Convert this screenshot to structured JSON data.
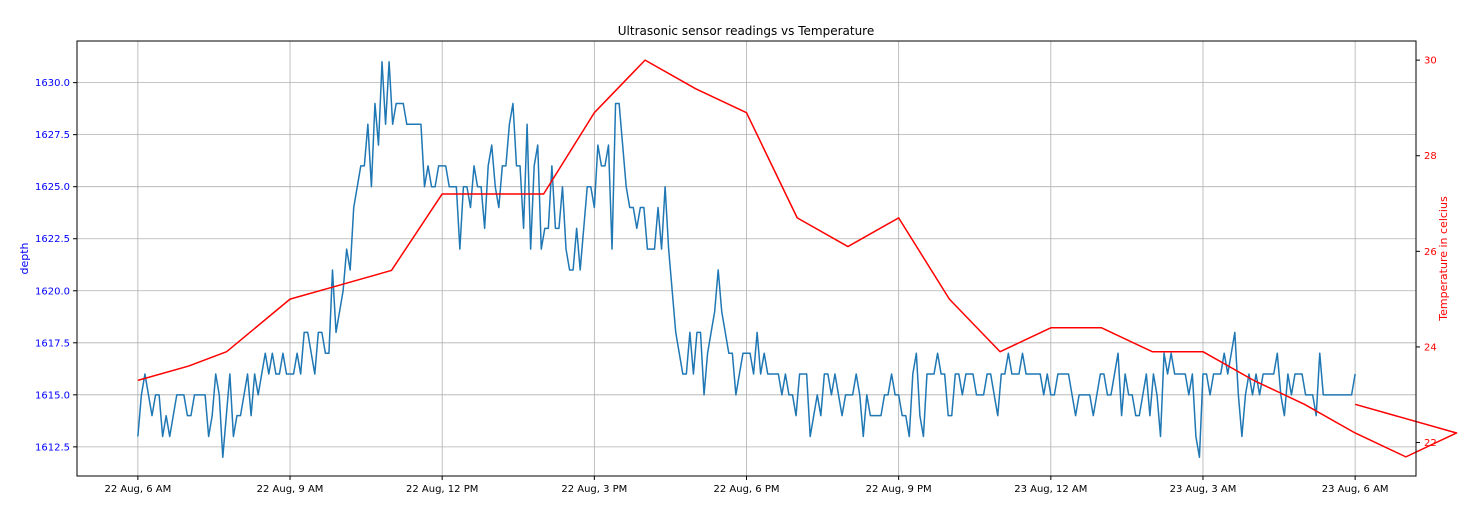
{
  "chart_data": {
    "type": "line",
    "title": "Ultrasonic sensor readings vs Temperature",
    "grid": true,
    "left_axis": {
      "label": "depth",
      "color": "#0000ff",
      "range": [
        1611.1,
        1632.0
      ],
      "ticks": [
        1612.5,
        1615.0,
        1617.5,
        1620.0,
        1622.5,
        1625.0,
        1627.5,
        1630.0
      ],
      "tick_labels": [
        "1612.5",
        "1615.0",
        "1617.5",
        "1620.0",
        "1622.5",
        "1625.0",
        "1627.5",
        "1630.0"
      ]
    },
    "right_axis": {
      "label": "Temperature in celcius",
      "color": "#ff0000",
      "range": [
        21.3,
        30.4
      ],
      "ticks": [
        22,
        24,
        26,
        28,
        30
      ],
      "tick_labels": [
        "22",
        "24",
        "26",
        "28",
        "30"
      ]
    },
    "x_axis": {
      "unit": "hours since first tick",
      "range": [
        -1.2,
        25.2
      ],
      "ticks": [
        0,
        3,
        6,
        9,
        12,
        15,
        18,
        21,
        24
      ],
      "tick_labels": [
        "22 Aug, 6 AM",
        "22 Aug, 9 AM",
        "22 Aug, 12 PM",
        "22 Aug, 3 PM",
        "22 Aug, 6 PM",
        "22 Aug, 9 PM",
        "23 Aug, 12 AM",
        "23 Aug, 3 AM",
        "23 Aug, 6 AM"
      ]
    },
    "series": [
      {
        "name": "depth",
        "axis": "left",
        "color": "#1f77b4",
        "x_start": 0.0,
        "x_end": 24.0,
        "values": [
          1613,
          1615,
          1616,
          1615,
          1614,
          1615,
          1615,
          1613,
          1614,
          1613,
          1614,
          1615,
          1615,
          1615,
          1614,
          1614,
          1615,
          1615,
          1615,
          1615,
          1613,
          1614,
          1616,
          1615,
          1612,
          1614,
          1616,
          1613,
          1614,
          1614,
          1615,
          1616,
          1614,
          1616,
          1615,
          1616,
          1617,
          1616,
          1617,
          1616,
          1616,
          1617,
          1616,
          1616,
          1616,
          1617,
          1616,
          1618,
          1618,
          1617,
          1616,
          1618,
          1618,
          1617,
          1617,
          1621,
          1618,
          1619,
          1620,
          1622,
          1621,
          1624,
          1625,
          1626,
          1626,
          1628,
          1625,
          1629,
          1627,
          1631,
          1628,
          1631,
          1628,
          1629,
          1629,
          1629,
          1628,
          1628,
          1628,
          1628,
          1628,
          1625,
          1626,
          1625,
          1625,
          1626,
          1626,
          1626,
          1625,
          1625,
          1625,
          1622,
          1625,
          1625,
          1624,
          1626,
          1625,
          1625,
          1623,
          1626,
          1627,
          1625,
          1624,
          1626,
          1626,
          1628,
          1629,
          1626,
          1626,
          1623,
          1628,
          1622,
          1626,
          1627,
          1622,
          1623,
          1623,
          1626,
          1623,
          1623,
          1625,
          1622,
          1621,
          1621,
          1623,
          1621,
          1623,
          1625,
          1625,
          1624,
          1627,
          1626,
          1626,
          1627,
          1622,
          1629,
          1629,
          1627,
          1625,
          1624,
          1624,
          1623,
          1624,
          1624,
          1622,
          1622,
          1622,
          1624,
          1622,
          1625,
          1622,
          1620,
          1618,
          1617,
          1616,
          1616,
          1618,
          1616,
          1618,
          1618,
          1615,
          1617,
          1618,
          1619,
          1621,
          1619,
          1618,
          1617,
          1617,
          1615,
          1616,
          1617,
          1617,
          1617,
          1616,
          1618,
          1616,
          1617,
          1616,
          1616,
          1616,
          1616,
          1615,
          1616,
          1615,
          1615,
          1614,
          1616,
          1616,
          1616,
          1613,
          1614,
          1615,
          1614,
          1616,
          1616,
          1615,
          1616,
          1615,
          1614,
          1615,
          1615,
          1615,
          1616,
          1615,
          1613,
          1615,
          1614,
          1614,
          1614,
          1614,
          1615,
          1615,
          1616,
          1615,
          1615,
          1614,
          1614,
          1613,
          1616,
          1617,
          1614,
          1613,
          1616,
          1616,
          1616,
          1617,
          1616,
          1616,
          1614,
          1614,
          1616,
          1616,
          1615,
          1616,
          1616,
          1616,
          1615,
          1615,
          1615,
          1616,
          1616,
          1615,
          1614,
          1616,
          1616,
          1617,
          1616,
          1616,
          1616,
          1617,
          1616,
          1616,
          1616,
          1616,
          1616,
          1615,
          1616,
          1615,
          1615,
          1616,
          1616,
          1616,
          1616,
          1615,
          1614,
          1615,
          1615,
          1615,
          1615,
          1614,
          1615,
          1616,
          1616,
          1615,
          1615,
          1616,
          1617,
          1614,
          1616,
          1615,
          1615,
          1614,
          1614,
          1615,
          1616,
          1614,
          1616,
          1615,
          1613,
          1617,
          1616,
          1617,
          1616,
          1616,
          1616,
          1616,
          1615,
          1616,
          1613,
          1612,
          1616,
          1616,
          1615,
          1616,
          1616,
          1616,
          1617,
          1616,
          1617,
          1618,
          1615,
          1613,
          1615,
          1616,
          1615,
          1616,
          1615,
          1616,
          1616,
          1616,
          1616,
          1617,
          1615,
          1614,
          1616,
          1615,
          1616,
          1616,
          1616,
          1615,
          1615,
          1615,
          1614,
          1617,
          1615,
          1615,
          1615,
          1615,
          1615,
          1615,
          1615,
          1615,
          1615,
          1616
        ]
      },
      {
        "name": "Temperature in celcius",
        "axis": "right",
        "color": "#ff0000",
        "points": [
          [
            0.0,
            23.3
          ],
          [
            1.0,
            23.6
          ],
          [
            1.75,
            23.9
          ],
          [
            3.0,
            25.0
          ],
          [
            4.0,
            25.3
          ],
          [
            5.0,
            25.6
          ],
          [
            6.0,
            27.2
          ],
          [
            7.0,
            27.2
          ],
          [
            8.0,
            27.2
          ],
          [
            9.0,
            28.9
          ],
          [
            10.0,
            30.0
          ],
          [
            11.0,
            29.4
          ],
          [
            12.0,
            28.9
          ],
          [
            13.0,
            26.7
          ],
          [
            14.0,
            26.1
          ],
          [
            15.0,
            26.7
          ],
          [
            16.0,
            25.0
          ],
          [
            17.0,
            23.9
          ],
          [
            18.0,
            24.4
          ],
          [
            19.0,
            24.4
          ],
          [
            20.0,
            23.9
          ],
          [
            21.0,
            23.9
          ],
          [
            22.0,
            23.3
          ],
          [
            23.0,
            22.8
          ],
          [
            24.0,
            22.2
          ],
          [
            25.0,
            21.7
          ],
          [
            26.0,
            22.2
          ],
          [
            24.0,
            22.8
          ]
        ]
      }
    ]
  }
}
